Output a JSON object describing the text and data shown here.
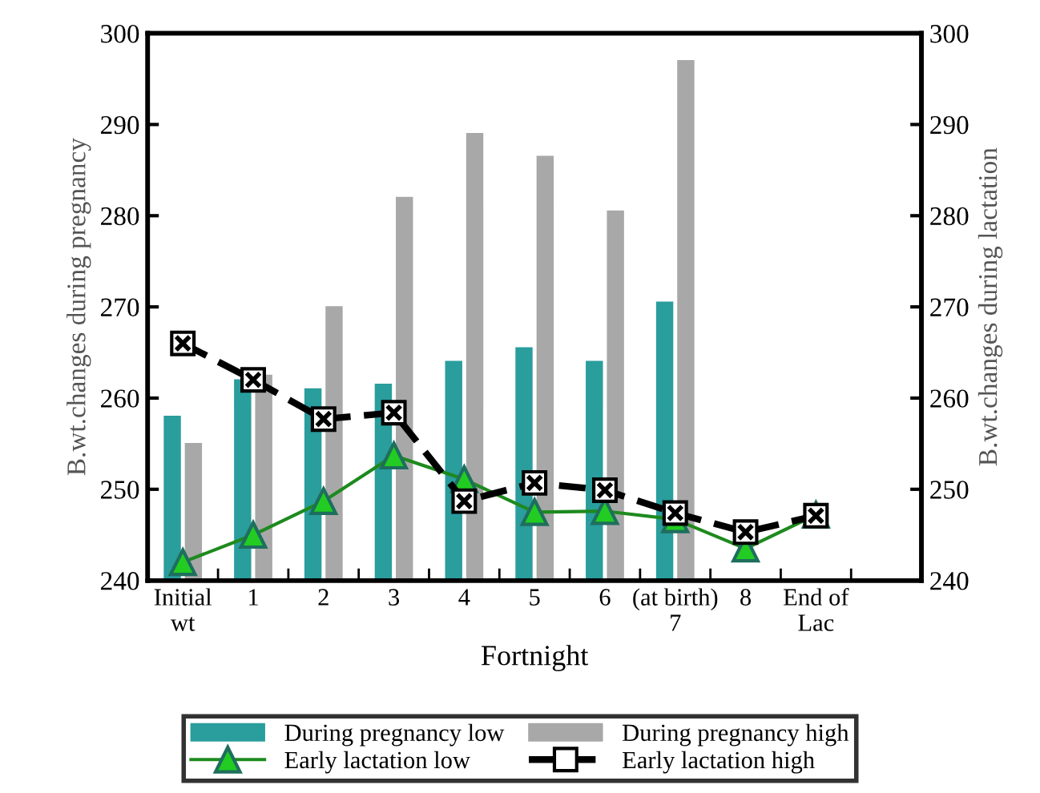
{
  "chart_data": {
    "type": "bar",
    "xlabel": "Fortnight",
    "ylabel": "B.wt.changes during pregnancy",
    "y2label": "B.wt.changes during lactation",
    "categories": [
      "Initial\nwt",
      "1",
      "2",
      "3",
      "4",
      "5",
      "6",
      "(at birth)\n7",
      "8",
      "End of\nLac"
    ],
    "series": [
      {
        "name": "During pregnancy low",
        "color": "#2a9d9d",
        "values": [
          258,
          262,
          261,
          261.5,
          264,
          265.5,
          264,
          270.5,
          null,
          null
        ]
      },
      {
        "name": "During pregnancy high",
        "color": "#a8a8a8",
        "values": [
          255,
          262.5,
          270,
          282,
          289,
          286.5,
          280.5,
          297,
          null,
          null
        ]
      },
      {
        "name": "Early lactation low",
        "type": "line",
        "color": "#1e8a1e",
        "marker": "triangle",
        "line_style": "solid",
        "values": [
          242,
          245,
          248.7,
          253.7,
          251.1,
          247.5,
          247.6,
          246.7,
          243.5,
          247.2
        ]
      },
      {
        "name": "Early lactation high",
        "type": "line",
        "color": "#000000",
        "marker": "square",
        "line_style": "dashed",
        "values": [
          266,
          262,
          257.7,
          258.4,
          248.7,
          250.7,
          249.9,
          247.4,
          245.3,
          247.1
        ]
      }
    ],
    "ylim": [
      240,
      300
    ],
    "yticks": [
      240,
      250,
      260,
      270,
      280,
      290,
      300
    ],
    "y2lim": [
      240,
      300
    ],
    "y2ticks": [
      240,
      250,
      260,
      270,
      280,
      290,
      300
    ],
    "legend": "bottom",
    "grid": false
  }
}
